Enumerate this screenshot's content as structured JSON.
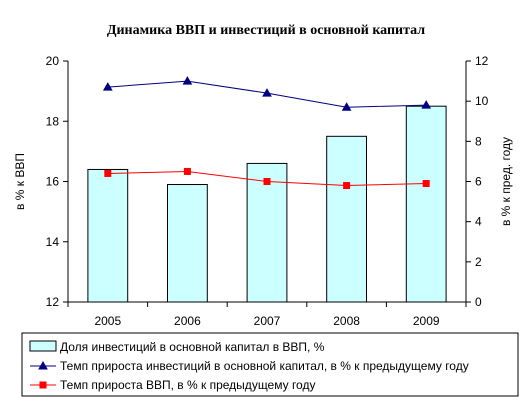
{
  "chart_data": {
    "type": "bar+line",
    "title": "Динамика ВВП и инвестиций в основной капитал",
    "categories": [
      "2005",
      "2006",
      "2007",
      "2008",
      "2009"
    ],
    "ylabel_left": "в % к ВВП",
    "ylabel_right": "в % к пред. году",
    "ylim_left": [
      12,
      20
    ],
    "yticks_left": [
      "12",
      "14",
      "16",
      "18",
      "20"
    ],
    "ylim_right": [
      0,
      12
    ],
    "yticks_right": [
      "0",
      "2",
      "4",
      "6",
      "8",
      "10",
      "12"
    ],
    "grid": false,
    "legend_position": "bottom",
    "bar_series": {
      "name": "Доля инвестиций в основной капитал в ВВП, %",
      "axis": "left",
      "values": [
        16.4,
        15.9,
        16.6,
        17.5,
        18.5
      ],
      "color": "#ccffff"
    },
    "line_series": [
      {
        "name": "Темп прироста инвестиций в основной капитал, в % к предыдущему году",
        "axis": "right",
        "values": [
          10.7,
          11.0,
          10.4,
          9.7,
          9.8
        ],
        "color": "#000080",
        "marker": "triangle"
      },
      {
        "name": "Темп прироста ВВП, в % к предыдущему году",
        "axis": "right",
        "values": [
          6.4,
          6.5,
          6.0,
          5.8,
          5.9
        ],
        "color": "#ff0000",
        "marker": "square"
      }
    ]
  }
}
